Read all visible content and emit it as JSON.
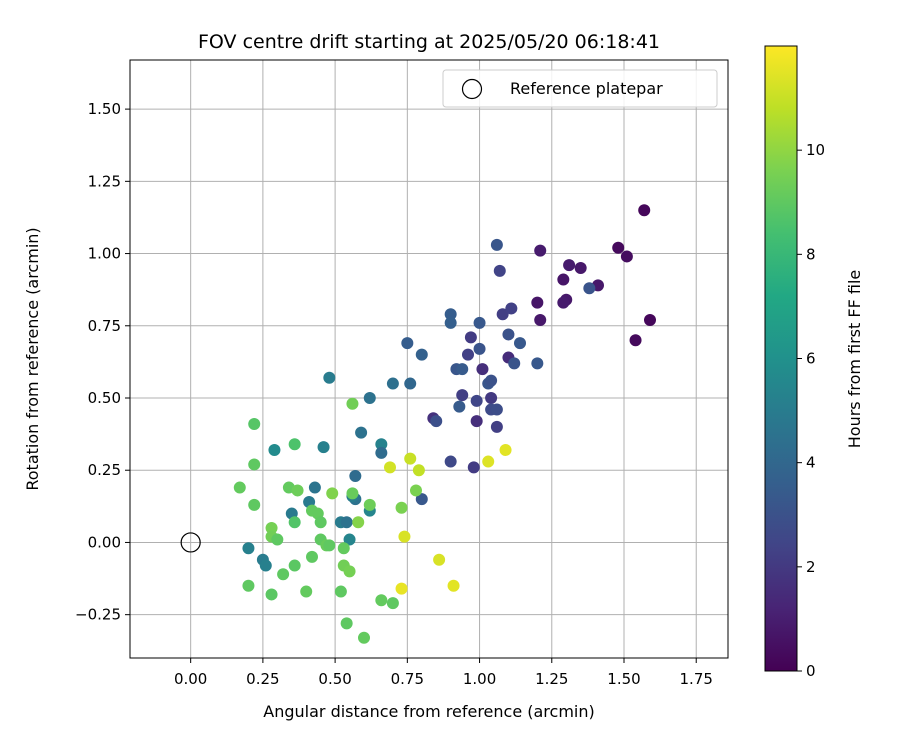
{
  "chart_data": {
    "type": "scatter",
    "title": "FOV centre drift starting at 2025/05/20 06:18:41",
    "xlabel": "Angular distance from reference (arcmin)",
    "ylabel": "Rotation from reference (arcmin)",
    "xlim": [
      -0.21,
      1.86
    ],
    "ylim": [
      -0.4,
      1.67
    ],
    "xticks": [
      "0.00",
      "0.25",
      "0.50",
      "0.75",
      "1.00",
      "1.25",
      "1.50",
      "1.75"
    ],
    "xtick_values": [
      0,
      0.25,
      0.5,
      0.75,
      1.0,
      1.25,
      1.5,
      1.75
    ],
    "yticks": [
      "−0.25",
      "0.00",
      "0.25",
      "0.50",
      "0.75",
      "1.00",
      "1.25",
      "1.50"
    ],
    "ytick_values": [
      -0.25,
      0,
      0.25,
      0.5,
      0.75,
      1.0,
      1.25,
      1.5
    ],
    "grid": true,
    "legend": {
      "position": "top-right",
      "entries": [
        "Reference platepar"
      ]
    },
    "reference_point": {
      "x": 0,
      "y": 0,
      "label": "Reference platepar"
    },
    "colorbar": {
      "label": "Hours from first FF file",
      "colormap": "viridis",
      "range": [
        0,
        12
      ],
      "ticks": [
        "0",
        "2",
        "4",
        "6",
        "8",
        "10"
      ],
      "tick_values": [
        0,
        2,
        4,
        6,
        8,
        10
      ]
    },
    "points": [
      {
        "x": 1.57,
        "y": 1.15,
        "c": 0.2
      },
      {
        "x": 1.48,
        "y": 1.02,
        "c": 0.3
      },
      {
        "x": 1.51,
        "y": 0.99,
        "c": 0.4
      },
      {
        "x": 1.59,
        "y": 0.77,
        "c": 0.2
      },
      {
        "x": 1.54,
        "y": 0.7,
        "c": 0.3
      },
      {
        "x": 1.41,
        "y": 0.89,
        "c": 0.8
      },
      {
        "x": 1.35,
        "y": 0.95,
        "c": 0.8
      },
      {
        "x": 1.31,
        "y": 0.96,
        "c": 0.9
      },
      {
        "x": 1.21,
        "y": 1.01,
        "c": 0.9
      },
      {
        "x": 1.29,
        "y": 0.91,
        "c": 0.7
      },
      {
        "x": 1.3,
        "y": 0.84,
        "c": 0.8
      },
      {
        "x": 1.29,
        "y": 0.83,
        "c": 0.9
      },
      {
        "x": 1.2,
        "y": 0.83,
        "c": 0.7
      },
      {
        "x": 1.21,
        "y": 0.77,
        "c": 0.8
      },
      {
        "x": 1.38,
        "y": 0.88,
        "c": 3.1
      },
      {
        "x": 1.1,
        "y": 0.64,
        "c": 1.5
      },
      {
        "x": 1.08,
        "y": 0.79,
        "c": 2.2
      },
      {
        "x": 1.11,
        "y": 0.81,
        "c": 2.3
      },
      {
        "x": 1.06,
        "y": 1.03,
        "c": 3.2
      },
      {
        "x": 1.07,
        "y": 0.94,
        "c": 2.4
      },
      {
        "x": 1.1,
        "y": 0.72,
        "c": 3.0
      },
      {
        "x": 1.14,
        "y": 0.69,
        "c": 3.3
      },
      {
        "x": 1.12,
        "y": 0.62,
        "c": 3.1
      },
      {
        "x": 1.2,
        "y": 0.62,
        "c": 3.3
      },
      {
        "x": 1.01,
        "y": 0.6,
        "c": 1.6
      },
      {
        "x": 1.03,
        "y": 0.55,
        "c": 3.2
      },
      {
        "x": 1.04,
        "y": 0.56,
        "c": 3.0
      },
      {
        "x": 1.0,
        "y": 0.76,
        "c": 3.3
      },
      {
        "x": 1.0,
        "y": 0.67,
        "c": 3.1
      },
      {
        "x": 0.97,
        "y": 0.71,
        "c": 2.1
      },
      {
        "x": 0.96,
        "y": 0.65,
        "c": 2.3
      },
      {
        "x": 0.9,
        "y": 0.79,
        "c": 3.5
      },
      {
        "x": 0.9,
        "y": 0.76,
        "c": 3.6
      },
      {
        "x": 0.92,
        "y": 0.6,
        "c": 3.2
      },
      {
        "x": 0.94,
        "y": 0.6,
        "c": 3.4
      },
      {
        "x": 0.94,
        "y": 0.51,
        "c": 2.2
      },
      {
        "x": 0.99,
        "y": 0.49,
        "c": 2.5
      },
      {
        "x": 0.93,
        "y": 0.47,
        "c": 3.4
      },
      {
        "x": 1.04,
        "y": 0.5,
        "c": 2.0
      },
      {
        "x": 1.04,
        "y": 0.46,
        "c": 2.7
      },
      {
        "x": 1.06,
        "y": 0.46,
        "c": 2.8
      },
      {
        "x": 0.99,
        "y": 0.42,
        "c": 1.6
      },
      {
        "x": 1.06,
        "y": 0.4,
        "c": 2.2
      },
      {
        "x": 0.9,
        "y": 0.28,
        "c": 2.6
      },
      {
        "x": 0.98,
        "y": 0.26,
        "c": 2.1
      },
      {
        "x": 0.84,
        "y": 0.43,
        "c": 1.7
      },
      {
        "x": 0.85,
        "y": 0.42,
        "c": 2.9
      },
      {
        "x": 0.75,
        "y": 0.69,
        "c": 3.5
      },
      {
        "x": 0.8,
        "y": 0.65,
        "c": 3.7
      },
      {
        "x": 0.7,
        "y": 0.55,
        "c": 4.4
      },
      {
        "x": 0.76,
        "y": 0.55,
        "c": 4.0
      },
      {
        "x": 0.8,
        "y": 0.15,
        "c": 3.3
      },
      {
        "x": 0.62,
        "y": 0.5,
        "c": 4.5
      },
      {
        "x": 0.66,
        "y": 0.34,
        "c": 5.3
      },
      {
        "x": 0.66,
        "y": 0.31,
        "c": 4.2
      },
      {
        "x": 0.59,
        "y": 0.38,
        "c": 4.5
      },
      {
        "x": 0.57,
        "y": 0.23,
        "c": 4.2
      },
      {
        "x": 0.48,
        "y": 0.57,
        "c": 5.0
      },
      {
        "x": 0.46,
        "y": 0.33,
        "c": 5.2
      },
      {
        "x": 0.57,
        "y": 0.15,
        "c": 4.5
      },
      {
        "x": 0.56,
        "y": 0.16,
        "c": 5.0
      },
      {
        "x": 0.62,
        "y": 0.11,
        "c": 5.4
      },
      {
        "x": 0.52,
        "y": 0.07,
        "c": 5.0
      },
      {
        "x": 0.54,
        "y": 0.07,
        "c": 4.5
      },
      {
        "x": 0.55,
        "y": 0.01,
        "c": 5.4
      },
      {
        "x": 0.43,
        "y": 0.19,
        "c": 4.6
      },
      {
        "x": 0.41,
        "y": 0.14,
        "c": 4.9
      },
      {
        "x": 0.35,
        "y": 0.1,
        "c": 4.9
      },
      {
        "x": 0.29,
        "y": 0.32,
        "c": 5.7
      },
      {
        "x": 0.2,
        "y": -0.02,
        "c": 5.2
      },
      {
        "x": 0.25,
        "y": -0.06,
        "c": 5.0
      },
      {
        "x": 0.26,
        "y": -0.08,
        "c": 5.2
      },
      {
        "x": 1.09,
        "y": 0.32,
        "c": 11.5
      },
      {
        "x": 1.03,
        "y": 0.28,
        "c": 11.4
      },
      {
        "x": 0.79,
        "y": 0.25,
        "c": 10.9
      },
      {
        "x": 0.76,
        "y": 0.29,
        "c": 11.0
      },
      {
        "x": 0.69,
        "y": 0.26,
        "c": 11.2
      },
      {
        "x": 0.74,
        "y": 0.02,
        "c": 11.3
      },
      {
        "x": 0.86,
        "y": -0.06,
        "c": 11.3
      },
      {
        "x": 0.91,
        "y": -0.15,
        "c": 11.5
      },
      {
        "x": 0.73,
        "y": -0.16,
        "c": 11.6
      },
      {
        "x": 0.78,
        "y": 0.18,
        "c": 9.6
      },
      {
        "x": 0.73,
        "y": 0.12,
        "c": 9.6
      },
      {
        "x": 0.62,
        "y": 0.13,
        "c": 9.3
      },
      {
        "x": 0.58,
        "y": 0.07,
        "c": 9.8
      },
      {
        "x": 0.56,
        "y": 0.48,
        "c": 9.4
      },
      {
        "x": 0.22,
        "y": 0.41,
        "c": 8.8
      },
      {
        "x": 0.22,
        "y": 0.27,
        "c": 9.0
      },
      {
        "x": 0.36,
        "y": 0.34,
        "c": 8.6
      },
      {
        "x": 0.17,
        "y": 0.19,
        "c": 9.1
      },
      {
        "x": 0.22,
        "y": 0.13,
        "c": 9.0
      },
      {
        "x": 0.34,
        "y": 0.19,
        "c": 9.1
      },
      {
        "x": 0.37,
        "y": 0.18,
        "c": 9.3
      },
      {
        "x": 0.36,
        "y": 0.07,
        "c": 8.7
      },
      {
        "x": 0.42,
        "y": 0.11,
        "c": 9.1
      },
      {
        "x": 0.44,
        "y": 0.1,
        "c": 9.1
      },
      {
        "x": 0.45,
        "y": 0.07,
        "c": 9.0
      },
      {
        "x": 0.49,
        "y": 0.17,
        "c": 9.7
      },
      {
        "x": 0.56,
        "y": 0.17,
        "c": 9.2
      },
      {
        "x": 0.28,
        "y": 0.05,
        "c": 9.5
      },
      {
        "x": 0.28,
        "y": 0.02,
        "c": 9.4
      },
      {
        "x": 0.3,
        "y": 0.01,
        "c": 9.0
      },
      {
        "x": 0.45,
        "y": 0.01,
        "c": 9.0
      },
      {
        "x": 0.47,
        "y": -0.01,
        "c": 9.2
      },
      {
        "x": 0.48,
        "y": -0.01,
        "c": 9.0
      },
      {
        "x": 0.53,
        "y": -0.02,
        "c": 9.1
      },
      {
        "x": 0.42,
        "y": -0.05,
        "c": 9.0
      },
      {
        "x": 0.36,
        "y": -0.08,
        "c": 8.9
      },
      {
        "x": 0.32,
        "y": -0.11,
        "c": 9.0
      },
      {
        "x": 0.53,
        "y": -0.08,
        "c": 9.4
      },
      {
        "x": 0.55,
        "y": -0.1,
        "c": 9.5
      },
      {
        "x": 0.2,
        "y": -0.15,
        "c": 9.0
      },
      {
        "x": 0.28,
        "y": -0.18,
        "c": 8.9
      },
      {
        "x": 0.4,
        "y": -0.17,
        "c": 9.1
      },
      {
        "x": 0.52,
        "y": -0.17,
        "c": 9.0
      },
      {
        "x": 0.66,
        "y": -0.2,
        "c": 9.1
      },
      {
        "x": 0.7,
        "y": -0.21,
        "c": 9.0
      },
      {
        "x": 0.54,
        "y": -0.28,
        "c": 9.0
      },
      {
        "x": 0.6,
        "y": -0.33,
        "c": 9.1
      }
    ]
  }
}
